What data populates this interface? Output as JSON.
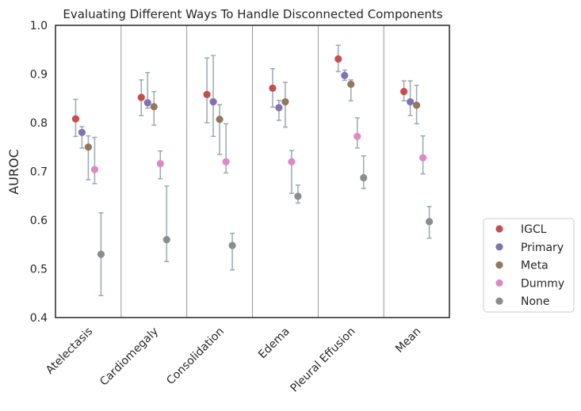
{
  "chart_data": {
    "type": "scatter",
    "title": "Evaluating Different Ways To Handle Disconnected Components",
    "xlabel": "",
    "ylabel": "AUROC",
    "ylim": [
      0.4,
      1.0
    ],
    "yticks": [
      "0.4",
      "0.5",
      "0.6",
      "0.7",
      "0.8",
      "0.9",
      "1.0"
    ],
    "categories": [
      "Atelectasis",
      "Cardiomegaly",
      "Consolidation",
      "Edema",
      "Pleural Effusion",
      "Mean"
    ],
    "legend_position": "lower-right outside",
    "series": [
      {
        "name": "IGCL",
        "color": "#c44e52",
        "values": [
          0.808,
          0.852,
          0.858,
          0.871,
          0.931,
          0.864
        ],
        "lower": [
          0.772,
          0.815,
          0.8,
          0.832,
          0.905,
          0.845
        ],
        "upper": [
          0.848,
          0.888,
          0.933,
          0.911,
          0.959,
          0.886
        ]
      },
      {
        "name": "Primary",
        "color": "#8172b2",
        "values": [
          0.78,
          0.841,
          0.843,
          0.831,
          0.897,
          0.843
        ],
        "lower": [
          0.748,
          0.83,
          0.772,
          0.805,
          0.887,
          0.815
        ],
        "upper": [
          0.792,
          0.903,
          0.938,
          0.846,
          0.908,
          0.886
        ]
      },
      {
        "name": "Meta",
        "color": "#937860",
        "values": [
          0.75,
          0.833,
          0.807,
          0.843,
          0.879,
          0.836
        ],
        "lower": [
          0.683,
          0.795,
          0.735,
          0.791,
          0.845,
          0.798
        ],
        "upper": [
          0.773,
          0.864,
          0.837,
          0.883,
          0.888,
          0.877
        ]
      },
      {
        "name": "Dummy",
        "color": "#da8bc3",
        "values": [
          0.704,
          0.716,
          0.72,
          0.72,
          0.772,
          0.728
        ],
        "lower": [
          0.675,
          0.685,
          0.697,
          0.655,
          0.748,
          0.695
        ],
        "upper": [
          0.77,
          0.742,
          0.798,
          0.743,
          0.81,
          0.773
        ]
      },
      {
        "name": "None",
        "color": "#8c8c8c",
        "values": [
          0.53,
          0.56,
          0.548,
          0.649,
          0.687,
          0.597
        ],
        "lower": [
          0.445,
          0.515,
          0.498,
          0.635,
          0.665,
          0.563
        ],
        "upper": [
          0.615,
          0.67,
          0.573,
          0.672,
          0.732,
          0.628
        ]
      }
    ]
  }
}
